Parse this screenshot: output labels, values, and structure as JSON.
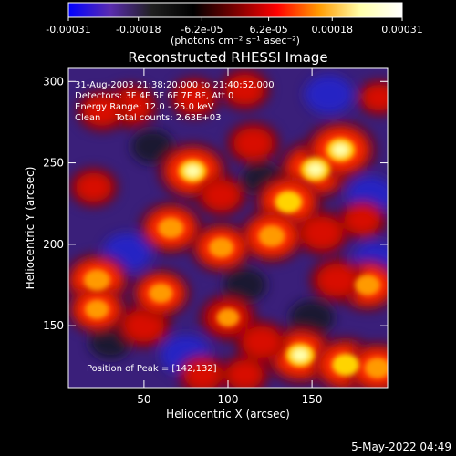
{
  "chart_data": {
    "type": "heatmap",
    "title": "Reconstructed RHESSI Image",
    "xlabel": "Heliocentric X (arcsec)",
    "ylabel": "Heliocentric Y (arcsec)",
    "xlim": [
      5,
      195
    ],
    "ylim": [
      112,
      308
    ],
    "x_ticks": [
      "50",
      "100",
      "150"
    ],
    "x_tick_values": [
      50,
      100,
      150
    ],
    "y_ticks": [
      "150",
      "200",
      "250",
      "300"
    ],
    "y_tick_values": [
      150,
      200,
      250,
      300
    ],
    "colorbar": {
      "min": -0.00031,
      "max": 0.00031,
      "tick_labels": [
        "-0.00031",
        "-0.00018",
        "-6.2e-05",
        "6.2e-05",
        "0.00018",
        "0.00031"
      ],
      "tick_values": [
        -0.00031,
        -0.00018,
        -6.2e-05,
        6.2e-05,
        0.00018,
        0.00031
      ],
      "label": "(photons cm⁻² s⁻¹ asec⁻²)",
      "colors": [
        "#0000ff",
        "#5a2cb0",
        "#202020",
        "#000000",
        "#7a0000",
        "#ff0000",
        "#ff9a00",
        "#ffffaa",
        "#ffffff"
      ]
    },
    "annotations": [
      "31-Aug-2003 21:38:20.000 to 21:40:52.000",
      "Detectors: 3F 4F 5F 6F 7F 8F, Att 0",
      "Energy Range: 12.0 - 25.0 keV",
      "Clean     Total counts: 2.63E+03",
      "Position of Peak = [142,132]"
    ],
    "peak_position": [
      142,
      132
    ],
    "total_counts": 2630,
    "sources": [
      {
        "x": 152,
        "y": 246,
        "intensity": 1.0
      },
      {
        "x": 167,
        "y": 258,
        "intensity": 0.95
      },
      {
        "x": 136,
        "y": 226,
        "intensity": 0.85
      },
      {
        "x": 126,
        "y": 205,
        "intensity": 0.8
      },
      {
        "x": 143,
        "y": 132,
        "intensity": 0.95
      },
      {
        "x": 170,
        "y": 126,
        "intensity": 0.85
      },
      {
        "x": 189,
        "y": 124,
        "intensity": 0.75
      },
      {
        "x": 79,
        "y": 245,
        "intensity": 0.9
      },
      {
        "x": 66,
        "y": 210,
        "intensity": 0.75
      },
      {
        "x": 22,
        "y": 178,
        "intensity": 0.8
      },
      {
        "x": 22,
        "y": 160,
        "intensity": 0.65
      },
      {
        "x": 50,
        "y": 150,
        "intensity": 0.55
      },
      {
        "x": 60,
        "y": 170,
        "intensity": 0.65
      },
      {
        "x": 100,
        "y": 155,
        "intensity": 0.6
      },
      {
        "x": 96,
        "y": 198,
        "intensity": 0.7
      },
      {
        "x": 183,
        "y": 175,
        "intensity": 0.75
      },
      {
        "x": 165,
        "y": 178,
        "intensity": 0.55
      },
      {
        "x": 156,
        "y": 207,
        "intensity": 0.55
      },
      {
        "x": 96,
        "y": 230,
        "intensity": 0.45
      },
      {
        "x": 115,
        "y": 262,
        "intensity": 0.5
      },
      {
        "x": 42,
        "y": 285,
        "intensity": 0.55
      },
      {
        "x": 25,
        "y": 282,
        "intensity": 0.45
      },
      {
        "x": 80,
        "y": 290,
        "intensity": 0.45
      },
      {
        "x": 110,
        "y": 295,
        "intensity": 0.45
      },
      {
        "x": 20,
        "y": 235,
        "intensity": 0.4
      },
      {
        "x": 120,
        "y": 140,
        "intensity": 0.5
      },
      {
        "x": 85,
        "y": 120,
        "intensity": 0.45
      },
      {
        "x": 110,
        "y": 120,
        "intensity": 0.4
      },
      {
        "x": 190,
        "y": 290,
        "intensity": 0.3
      },
      {
        "x": 180,
        "y": 215,
        "intensity": 0.4
      }
    ],
    "minima": [
      {
        "x": 75,
        "y": 132,
        "depth": 1.0
      },
      {
        "x": 160,
        "y": 292,
        "depth": 0.9
      },
      {
        "x": 40,
        "y": 195,
        "depth": 0.9
      },
      {
        "x": 185,
        "y": 230,
        "depth": 0.85
      },
      {
        "x": 188,
        "y": 190,
        "depth": 0.85
      },
      {
        "x": 150,
        "y": 155,
        "depth": 0.7
      },
      {
        "x": 30,
        "y": 140,
        "depth": 0.6
      },
      {
        "x": 110,
        "y": 175,
        "depth": 0.65
      },
      {
        "x": 120,
        "y": 240,
        "depth": 0.5
      },
      {
        "x": 55,
        "y": 260,
        "depth": 0.6
      }
    ]
  },
  "footer": {
    "timestamp": "5-May-2022 04:49"
  }
}
